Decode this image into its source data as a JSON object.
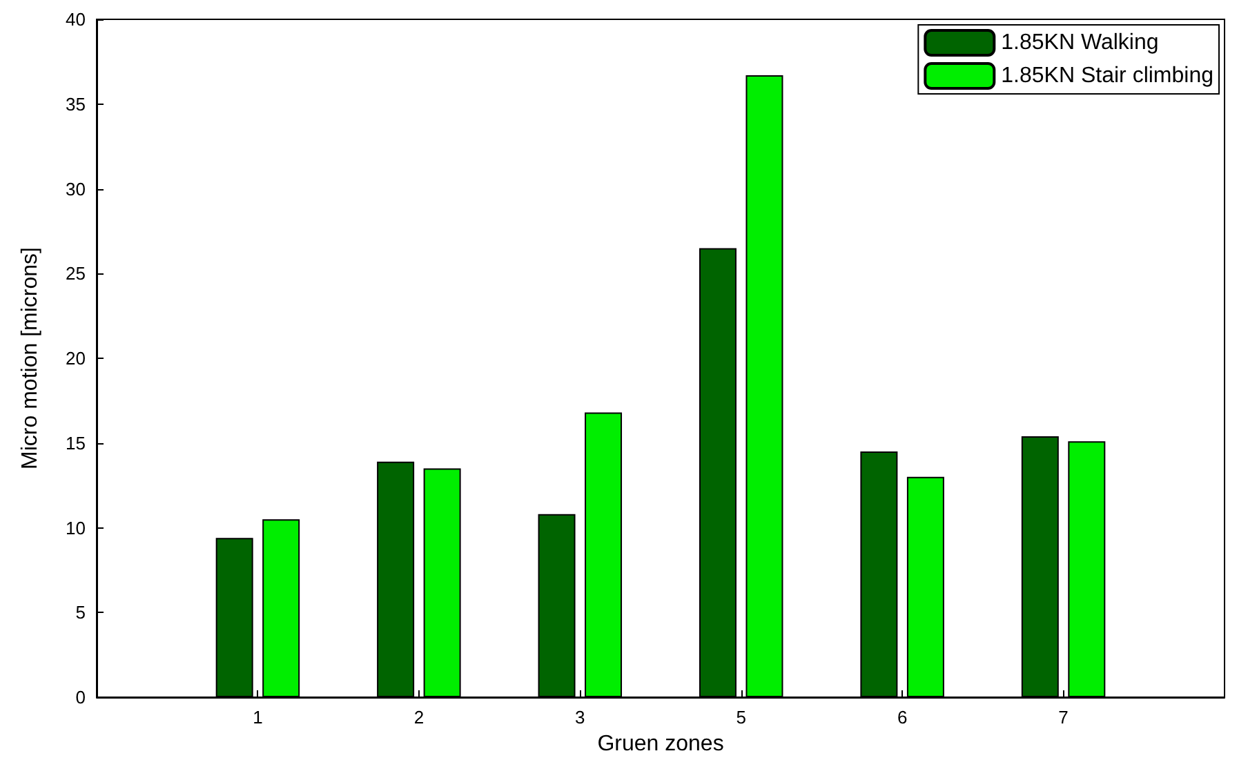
{
  "chart_data": {
    "type": "bar",
    "xlabel": "Gruen zones",
    "ylabel": "Micro motion [microns]",
    "categories": [
      "1",
      "2",
      "3",
      "5",
      "6",
      "7"
    ],
    "series": [
      {
        "name": "1.85KN Walking",
        "color": "#006400",
        "values": [
          9.4,
          13.9,
          10.8,
          26.5,
          14.5,
          15.4
        ]
      },
      {
        "name": "1.85KN Stair climbing",
        "color": "#00ee00",
        "values": [
          10.5,
          13.5,
          16.8,
          36.7,
          13.0,
          15.1
        ]
      }
    ],
    "ylim": [
      0,
      40
    ],
    "yticks": [
      0,
      5,
      10,
      15,
      20,
      25,
      30,
      35,
      40
    ],
    "grid": false,
    "legend": "top right"
  }
}
